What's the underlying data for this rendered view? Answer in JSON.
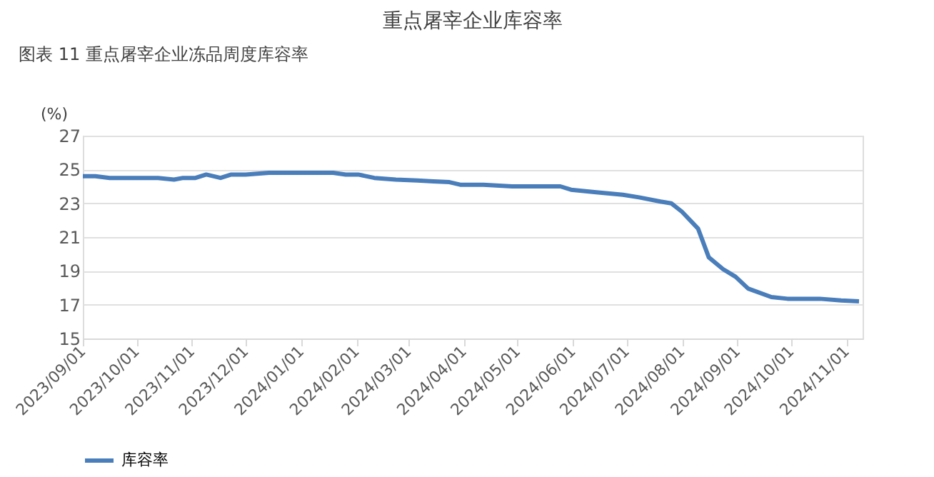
{
  "chart_data": {
    "type": "line",
    "title": "重点屠宰企业库容率",
    "ylabel": "(%)",
    "annotations": [
      "图表 11  重点屠宰企业冻品周度库容率"
    ],
    "x": [
      "2023-09-01",
      "2023-09-08",
      "2023-09-16",
      "2023-09-22",
      "2023-09-29",
      "2023-10-06",
      "2023-10-13",
      "2023-10-22",
      "2023-10-27",
      "2023-11-03",
      "2023-11-09",
      "2023-11-17",
      "2023-11-23",
      "2023-12-01",
      "2023-12-14",
      "2023-12-22",
      "2024-01-05",
      "2024-01-19",
      "2024-01-26",
      "2024-02-02",
      "2024-02-11",
      "2024-02-23",
      "2024-03-06",
      "2024-03-15",
      "2024-03-24",
      "2024-03-30",
      "2024-04-12",
      "2024-04-28",
      "2024-05-10",
      "2024-05-25",
      "2024-05-31",
      "2024-06-14",
      "2024-06-29",
      "2024-07-08",
      "2024-07-20",
      "2024-07-26",
      "2024-08-01",
      "2024-08-10",
      "2024-08-16",
      "2024-08-24",
      "2024-08-31",
      "2024-09-07",
      "2024-09-20",
      "2024-09-29",
      "2024-10-17",
      "2024-10-29",
      "2024-11-08"
    ],
    "series": [
      {
        "name": "库容率",
        "color": "#4a7ebb",
        "values": [
          24.6,
          24.6,
          24.5,
          24.5,
          24.5,
          24.5,
          24.5,
          24.4,
          24.5,
          24.5,
          24.7,
          24.5,
          24.7,
          24.7,
          24.8,
          24.8,
          24.8,
          24.8,
          24.7,
          24.7,
          24.5,
          24.4,
          24.35,
          24.3,
          24.25,
          24.1,
          24.1,
          24.0,
          24.0,
          24.0,
          23.8,
          23.65,
          23.5,
          23.35,
          23.1,
          23.0,
          22.5,
          21.5,
          19.8,
          19.1,
          18.65,
          17.95,
          17.45,
          17.35,
          17.35,
          17.25,
          17.2
        ]
      }
    ],
    "xlim": [
      "2023-09-01",
      "2024-11-10"
    ],
    "xticks": [
      {
        "value": "2023-09-01",
        "label": "2023/09/01"
      },
      {
        "value": "2023-10-01",
        "label": "2023/10/01"
      },
      {
        "value": "2023-11-01",
        "label": "2023/11/01"
      },
      {
        "value": "2023-12-01",
        "label": "2023/12/01"
      },
      {
        "value": "2024-01-01",
        "label": "2024/01/01"
      },
      {
        "value": "2024-02-01",
        "label": "2024/02/01"
      },
      {
        "value": "2024-03-01",
        "label": "2024/03/01"
      },
      {
        "value": "2024-04-01",
        "label": "2024/04/01"
      },
      {
        "value": "2024-05-01",
        "label": "2024/05/01"
      },
      {
        "value": "2024-06-01",
        "label": "2024/06/01"
      },
      {
        "value": "2024-07-01",
        "label": "2024/07/01"
      },
      {
        "value": "2024-08-01",
        "label": "2024/08/01"
      },
      {
        "value": "2024-09-01",
        "label": "2024/09/01"
      },
      {
        "value": "2024-10-01",
        "label": "2024/10/01"
      },
      {
        "value": "2024-11-01",
        "label": "2024/11/01"
      }
    ],
    "ylim": [
      15,
      27
    ],
    "yticks": [
      15,
      17,
      19,
      21,
      23,
      25,
      27
    ],
    "grid": "y",
    "legend": "bottom",
    "marker": "none",
    "line_style": "solid"
  }
}
